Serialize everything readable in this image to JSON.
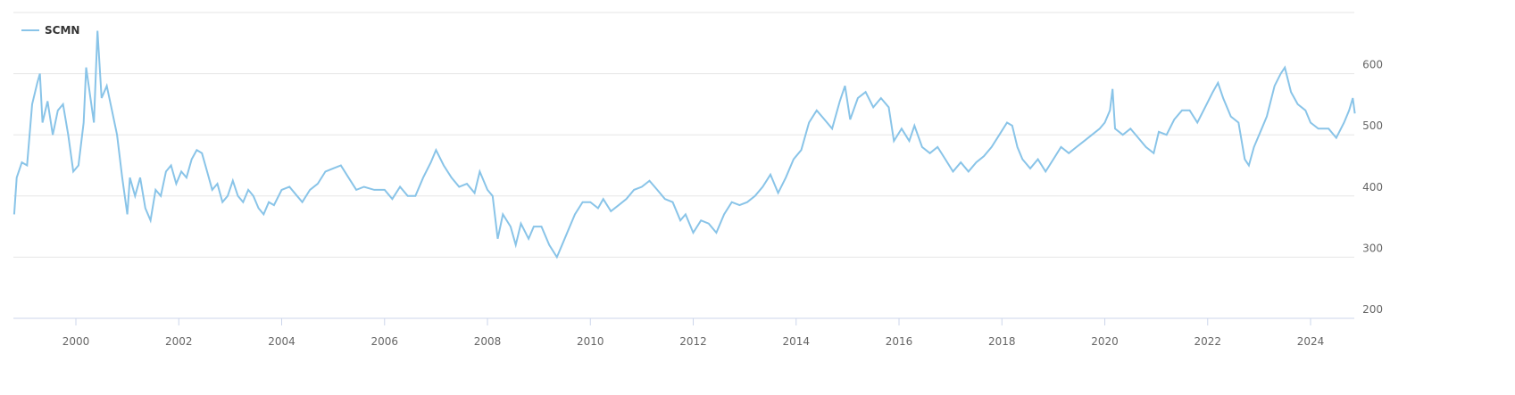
{
  "chart_data": {
    "type": "line",
    "x": [
      1998.8,
      1998.85,
      1998.95,
      1999.05,
      1999.15,
      1999.25,
      1999.3,
      1999.35,
      1999.45,
      1999.55,
      1999.65,
      1999.75,
      1999.85,
      1999.95,
      2000.05,
      2000.15,
      2000.2,
      2000.25,
      2000.35,
      2000.42,
      2000.5,
      2000.6,
      2000.7,
      2000.8,
      2000.9,
      2001.0,
      2001.05,
      2001.15,
      2001.25,
      2001.35,
      2001.45,
      2001.55,
      2001.65,
      2001.75,
      2001.85,
      2001.95,
      2002.05,
      2002.15,
      2002.25,
      2002.35,
      2002.45,
      2002.55,
      2002.65,
      2002.75,
      2002.85,
      2002.95,
      2003.05,
      2003.15,
      2003.25,
      2003.35,
      2003.45,
      2003.55,
      2003.65,
      2003.75,
      2003.85,
      2004.0,
      2004.15,
      2004.3,
      2004.4,
      2004.55,
      2004.7,
      2004.85,
      2005.0,
      2005.15,
      2005.3,
      2005.45,
      2005.6,
      2005.8,
      2006.0,
      2006.15,
      2006.3,
      2006.45,
      2006.6,
      2006.75,
      2006.9,
      2007.0,
      2007.15,
      2007.3,
      2007.45,
      2007.6,
      2007.75,
      2007.85,
      2008.0,
      2008.1,
      2008.2,
      2008.3,
      2008.45,
      2008.55,
      2008.65,
      2008.8,
      2008.9,
      2009.05,
      2009.2,
      2009.35,
      2009.45,
      2009.6,
      2009.7,
      2009.85,
      2010.0,
      2010.15,
      2010.25,
      2010.4,
      2010.55,
      2010.7,
      2010.85,
      2011.0,
      2011.15,
      2011.3,
      2011.45,
      2011.6,
      2011.75,
      2011.85,
      2012.0,
      2012.15,
      2012.3,
      2012.45,
      2012.6,
      2012.75,
      2012.9,
      2013.05,
      2013.2,
      2013.35,
      2013.5,
      2013.65,
      2013.8,
      2013.95,
      2014.1,
      2014.25,
      2014.4,
      2014.55,
      2014.7,
      2014.85,
      2014.95,
      2015.05,
      2015.2,
      2015.35,
      2015.5,
      2015.65,
      2015.8,
      2015.9,
      2016.05,
      2016.2,
      2016.3,
      2016.45,
      2016.6,
      2016.75,
      2016.9,
      2017.05,
      2017.2,
      2017.35,
      2017.5,
      2017.65,
      2017.8,
      2017.95,
      2018.1,
      2018.2,
      2018.3,
      2018.4,
      2018.55,
      2018.7,
      2018.85,
      2019.0,
      2019.15,
      2019.3,
      2019.45,
      2019.6,
      2019.75,
      2019.9,
      2020.0,
      2020.1,
      2020.15,
      2020.2,
      2020.35,
      2020.5,
      2020.65,
      2020.8,
      2020.95,
      2021.05,
      2021.2,
      2021.35,
      2021.5,
      2021.65,
      2021.8,
      2021.95,
      2022.1,
      2022.2,
      2022.3,
      2022.45,
      2022.6,
      2022.72,
      2022.8,
      2022.9,
      2023.05,
      2023.15,
      2023.3,
      2023.42,
      2023.5,
      2023.62,
      2023.75,
      2023.9,
      2024.0,
      2024.15,
      2024.35,
      2024.5,
      2024.65,
      2024.75,
      2024.82,
      2024.86
    ],
    "series": [
      {
        "name": "SCMN",
        "color": "#89c4e8",
        "values": [
          370,
          430,
          455,
          450,
          550,
          585,
          600,
          520,
          555,
          500,
          540,
          550,
          500,
          440,
          450,
          520,
          610,
          580,
          520,
          670,
          560,
          580,
          540,
          500,
          430,
          370,
          430,
          400,
          430,
          380,
          360,
          410,
          400,
          440,
          450,
          420,
          440,
          430,
          460,
          475,
          470,
          440,
          410,
          420,
          390,
          400,
          425,
          400,
          390,
          410,
          400,
          380,
          370,
          390,
          385,
          410,
          415,
          400,
          390,
          410,
          420,
          440,
          445,
          450,
          430,
          410,
          415,
          410,
          410,
          395,
          415,
          400,
          400,
          430,
          455,
          475,
          450,
          430,
          415,
          420,
          405,
          440,
          410,
          400,
          330,
          370,
          350,
          320,
          355,
          330,
          350,
          350,
          320,
          300,
          320,
          350,
          370,
          390,
          390,
          380,
          395,
          375,
          385,
          395,
          410,
          415,
          425,
          410,
          395,
          390,
          360,
          370,
          340,
          360,
          355,
          340,
          370,
          390,
          385,
          390,
          400,
          415,
          435,
          405,
          430,
          460,
          475,
          520,
          540,
          525,
          510,
          555,
          580,
          525,
          560,
          570,
          545,
          560,
          545,
          490,
          510,
          490,
          515,
          480,
          470,
          480,
          460,
          440,
          455,
          440,
          455,
          465,
          480,
          500,
          520,
          515,
          480,
          460,
          445,
          460,
          440,
          460,
          480,
          470,
          480,
          490,
          500,
          510,
          520,
          540,
          575,
          510,
          500,
          510,
          495,
          480,
          470,
          505,
          500,
          525,
          540,
          540,
          520,
          545,
          570,
          585,
          560,
          530,
          520,
          460,
          450,
          480,
          510,
          530,
          580,
          600,
          610,
          570,
          550,
          540,
          520,
          510,
          510,
          495,
          520,
          540,
          560,
          535
        ]
      }
    ],
    "xlim": [
      1998.785,
      2024.85
    ],
    "xticks": [
      2000,
      2002,
      2004,
      2006,
      2008,
      2010,
      2012,
      2014,
      2016,
      2018,
      2020,
      2022,
      2024
    ],
    "ylim": [
      200,
      700
    ],
    "yticks": [
      200,
      300,
      400,
      500,
      600
    ],
    "grid": true,
    "legend": "top-left"
  }
}
